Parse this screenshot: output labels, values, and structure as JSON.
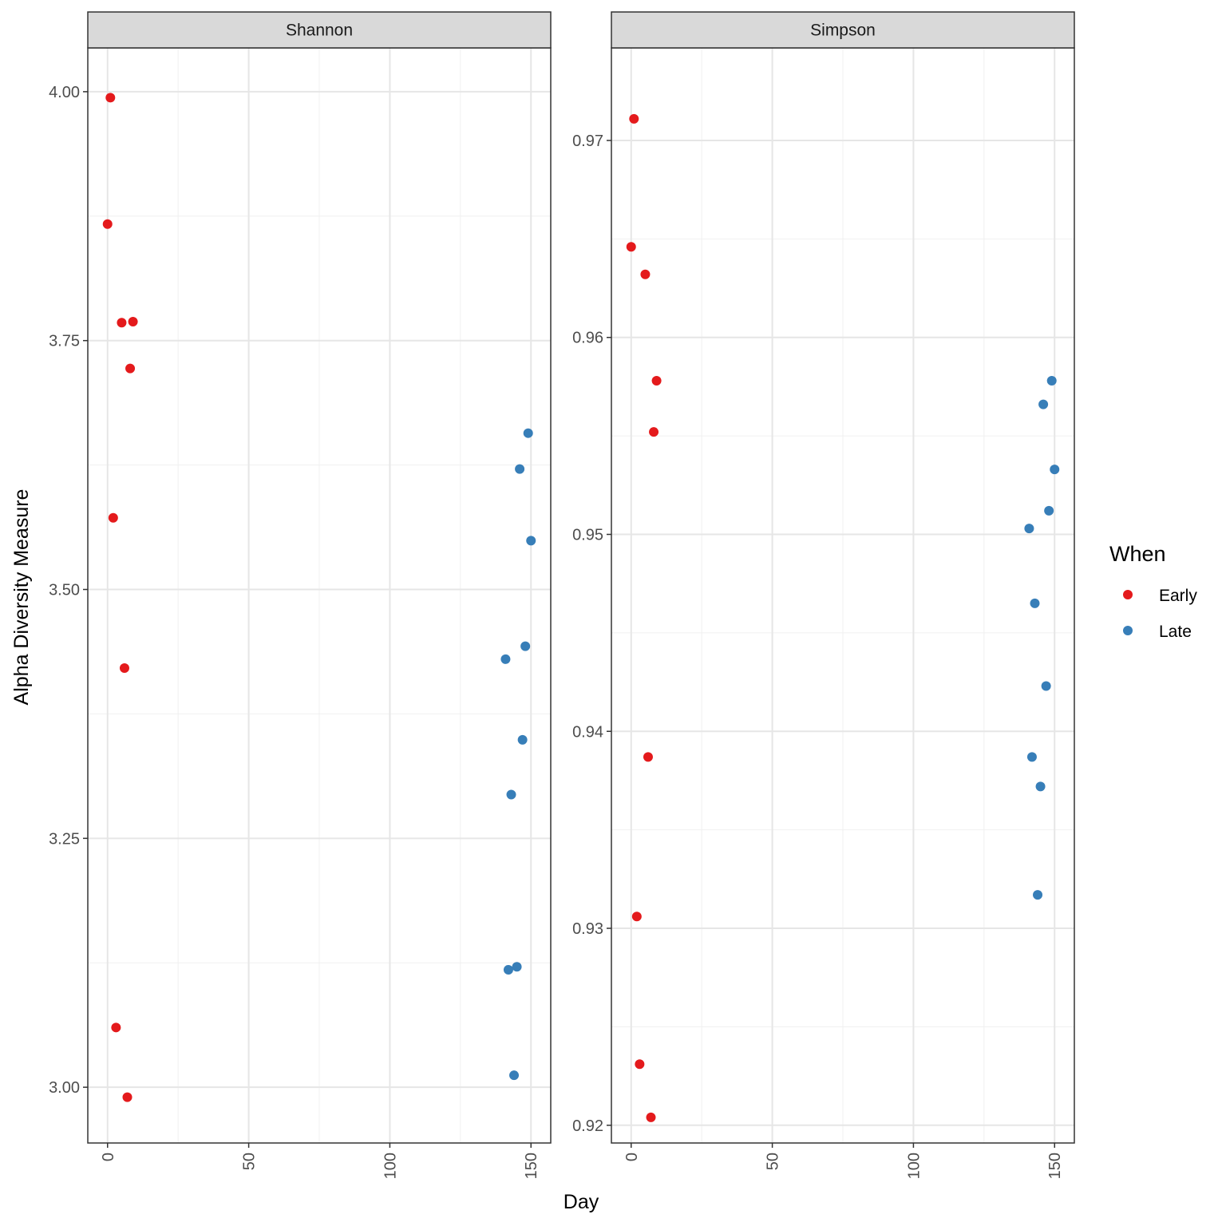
{
  "chart_data": {
    "type": "scatter",
    "xlabel": "Day",
    "ylabel": "Alpha Diversity Measure",
    "grid": true,
    "legend": {
      "title": "When",
      "position": "right",
      "entries": [
        {
          "name": "Early",
          "color": "#e41a1c"
        },
        {
          "name": "Late",
          "color": "#377eb8"
        }
      ]
    },
    "facets": [
      {
        "label": "Shannon",
        "xlim": [
          -7,
          157
        ],
        "ylim": [
          2.944,
          4.044
        ],
        "xticks": [
          0,
          50,
          100,
          150
        ],
        "xtick_labels": [
          "0",
          "50",
          "100",
          "150"
        ],
        "yticks": [
          3.0,
          3.25,
          3.5,
          3.75,
          4.0
        ],
        "ytick_labels": [
          "3.00",
          "3.25",
          "3.50",
          "3.75",
          "4.00"
        ],
        "series": [
          {
            "name": "Early",
            "points": [
              {
                "x": 1,
                "y": 3.994
              },
              {
                "x": 0,
                "y": 3.867
              },
              {
                "x": 5,
                "y": 3.768
              },
              {
                "x": 9,
                "y": 3.769
              },
              {
                "x": 8,
                "y": 3.722
              },
              {
                "x": 2,
                "y": 3.572
              },
              {
                "x": 6,
                "y": 3.421
              },
              {
                "x": 3,
                "y": 3.06
              },
              {
                "x": 7,
                "y": 2.99
              }
            ]
          },
          {
            "name": "Late",
            "points": [
              {
                "x": 149,
                "y": 3.657
              },
              {
                "x": 146,
                "y": 3.621
              },
              {
                "x": 150,
                "y": 3.549
              },
              {
                "x": 148,
                "y": 3.443
              },
              {
                "x": 141,
                "y": 3.43
              },
              {
                "x": 147,
                "y": 3.349
              },
              {
                "x": 143,
                "y": 3.294
              },
              {
                "x": 145,
                "y": 3.121
              },
              {
                "x": 142,
                "y": 3.118
              },
              {
                "x": 144,
                "y": 3.012
              }
            ]
          }
        ]
      },
      {
        "label": "Simpson",
        "xlim": [
          -7,
          157
        ],
        "ylim": [
          0.9191,
          0.9747
        ],
        "xticks": [
          0,
          50,
          100,
          150
        ],
        "xtick_labels": [
          "0",
          "50",
          "100",
          "150"
        ],
        "yticks": [
          0.92,
          0.93,
          0.94,
          0.95,
          0.96,
          0.97
        ],
        "ytick_labels": [
          "0.92",
          "0.93",
          "0.94",
          "0.95",
          "0.96",
          "0.97"
        ],
        "series": [
          {
            "name": "Early",
            "points": [
              {
                "x": 1,
                "y": 0.9711
              },
              {
                "x": 0,
                "y": 0.9646
              },
              {
                "x": 5,
                "y": 0.9632
              },
              {
                "x": 9,
                "y": 0.9578
              },
              {
                "x": 8,
                "y": 0.9552
              },
              {
                "x": 6,
                "y": 0.9387
              },
              {
                "x": 2,
                "y": 0.9306
              },
              {
                "x": 3,
                "y": 0.9231
              },
              {
                "x": 7,
                "y": 0.9204
              }
            ]
          },
          {
            "name": "Late",
            "points": [
              {
                "x": 149,
                "y": 0.9578
              },
              {
                "x": 146,
                "y": 0.9566
              },
              {
                "x": 150,
                "y": 0.9533
              },
              {
                "x": 148,
                "y": 0.9512
              },
              {
                "x": 141,
                "y": 0.9503
              },
              {
                "x": 143,
                "y": 0.9465
              },
              {
                "x": 147,
                "y": 0.9423
              },
              {
                "x": 142,
                "y": 0.9387
              },
              {
                "x": 145,
                "y": 0.9372
              },
              {
                "x": 144,
                "y": 0.9317
              }
            ]
          }
        ]
      }
    ]
  }
}
